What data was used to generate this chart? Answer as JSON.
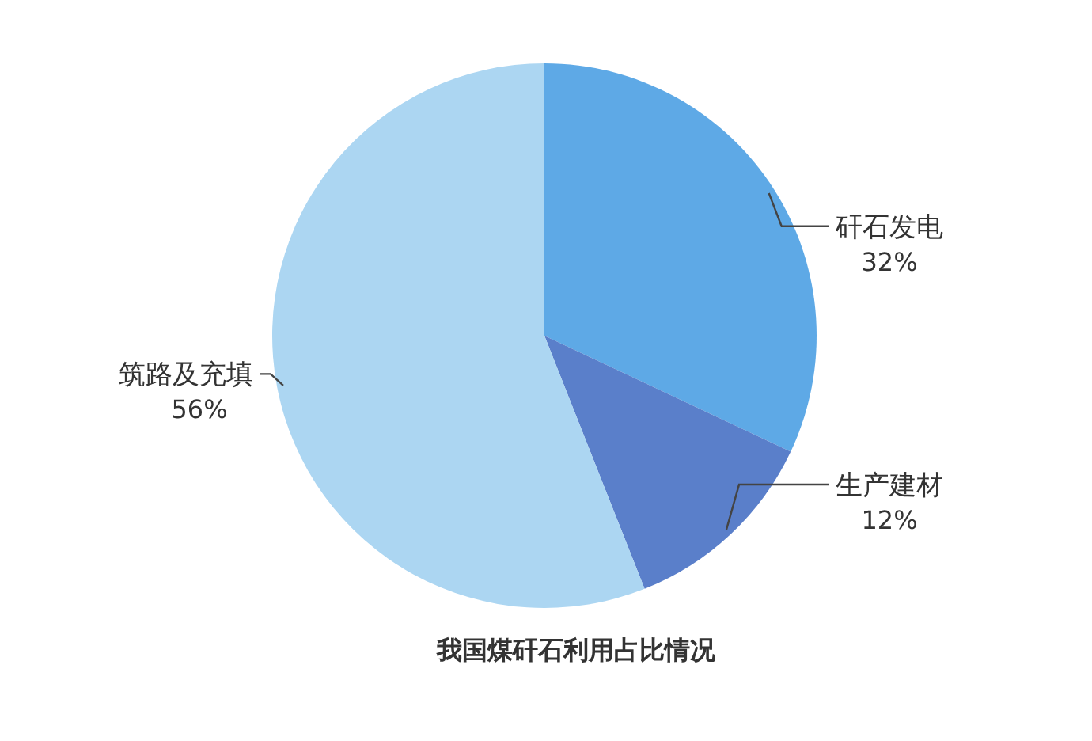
{
  "chart_data": {
    "type": "pie",
    "title": "我国煤矸石利用占比情况",
    "categories": [
      "矸石发电",
      "生产建材",
      "筑路及充填"
    ],
    "values": [
      32,
      12,
      56
    ],
    "value_labels": [
      "32%",
      "12%",
      "56%"
    ],
    "colors": [
      "#5ea9e6",
      "#5a7fca",
      "#acd6f2"
    ],
    "legend": false
  }
}
